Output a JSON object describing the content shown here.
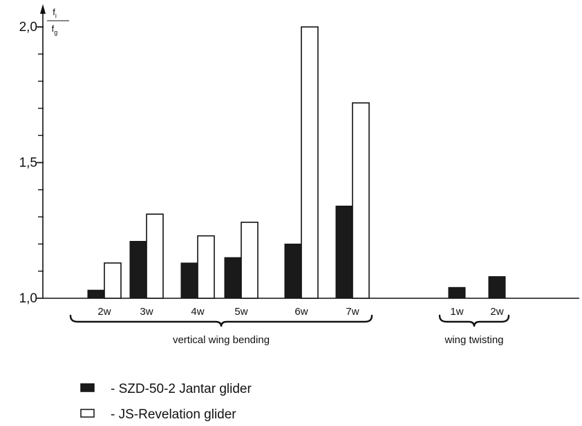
{
  "chart_data": {
    "type": "bar",
    "ylabel": {
      "numerator": "f",
      "numerator_sub": "i",
      "denominator": "f",
      "denominator_sub": "g"
    },
    "ylim": [
      1.0,
      2.0
    ],
    "yticks": [
      1.0,
      1.5,
      2.0
    ],
    "ytick_labels": [
      "1,0",
      "1,5",
      "2,0"
    ],
    "y_minor_step": 0.1,
    "grid": false,
    "legend_position": "bottom-left",
    "categories": [
      "2w",
      "3w",
      "4w",
      "5w",
      "6w",
      "7w",
      "1w",
      "2w"
    ],
    "groups": [
      {
        "label": "vertical wing bending",
        "categories": [
          "2w",
          "3w",
          "4w",
          "5w",
          "6w",
          "7w"
        ]
      },
      {
        "label": "wing twisting",
        "categories": [
          "1w",
          "2w"
        ]
      }
    ],
    "series": [
      {
        "name": "- SZD-50-2 Jantar glider",
        "color": "#1a1a1a",
        "values": [
          1.03,
          1.21,
          1.13,
          1.15,
          1.2,
          1.34,
          1.04,
          1.08
        ]
      },
      {
        "name": "- JS-Revelation glider",
        "color": "#ffffff",
        "values": [
          1.13,
          1.31,
          1.23,
          1.28,
          2.0,
          1.72,
          null,
          null
        ]
      }
    ]
  }
}
